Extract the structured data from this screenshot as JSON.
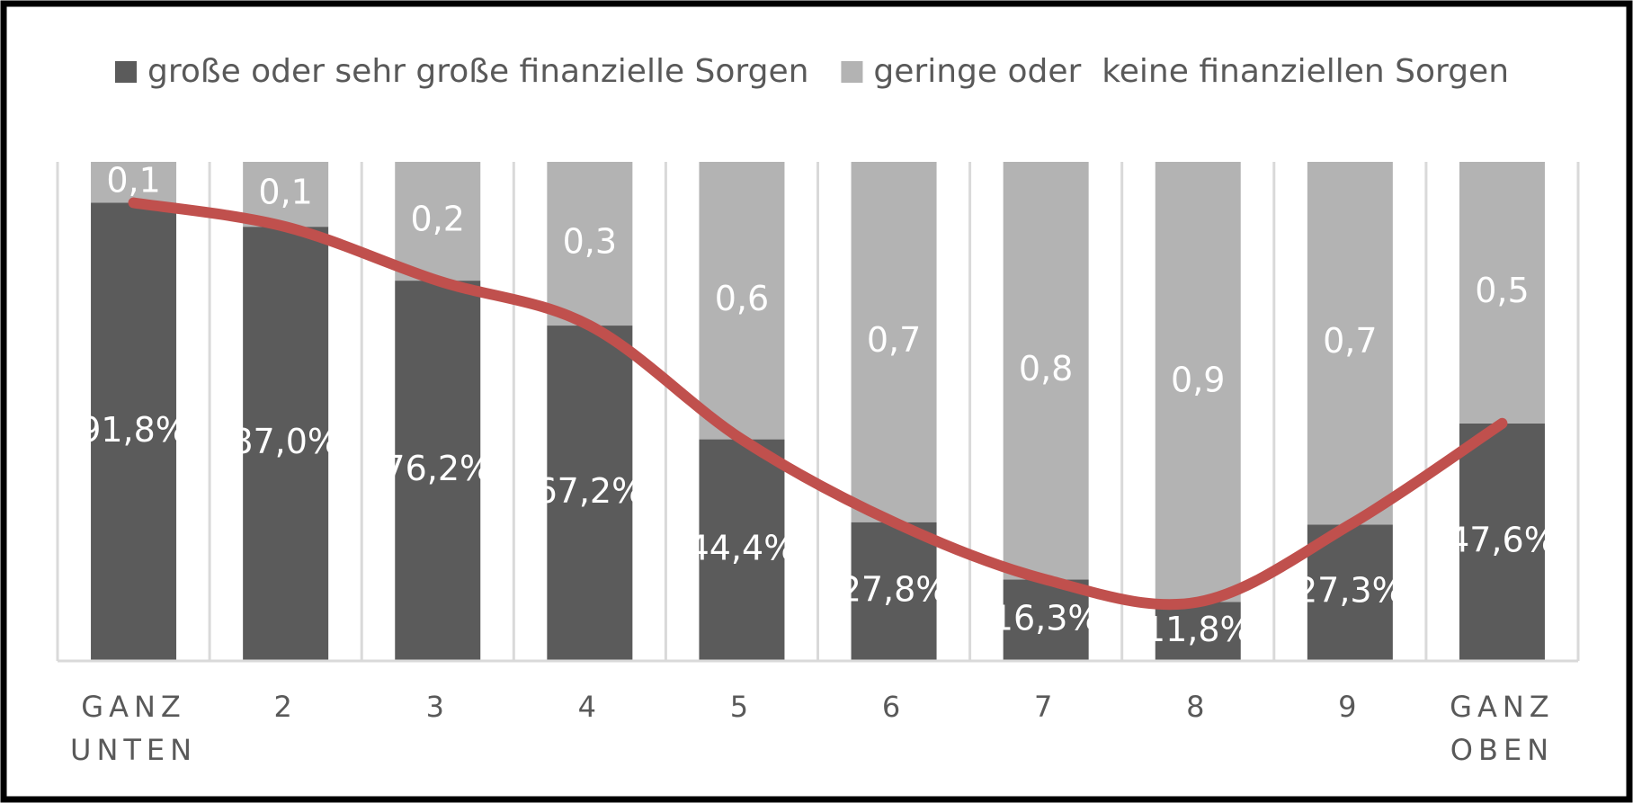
{
  "chart_data": {
    "type": "stacked_bar",
    "categories": [
      "GANZ UNTEN",
      "2",
      "3",
      "4",
      "5",
      "6",
      "7",
      "8",
      "9",
      "GANZ OBEN"
    ],
    "series": [
      {
        "name": "große oder sehr große finanzielle Sorgen",
        "color": "#5b5b5b",
        "values": [
          91.8,
          87.0,
          76.2,
          67.2,
          44.4,
          27.8,
          16.3,
          11.8,
          27.3,
          47.6
        ],
        "value_labels": [
          "91,8%",
          "87,0%",
          "76,2%",
          "67,2%",
          "44,4%",
          "27,8%",
          "16,3%",
          "11,8%",
          "27,3%",
          "47,6%"
        ]
      },
      {
        "name": "geringe oder  keine finanziellen Sorgen",
        "color": "#b3b3b3",
        "values": [
          8.2,
          13.0,
          23.8,
          32.8,
          55.6,
          72.2,
          83.7,
          88.2,
          72.7,
          52.4
        ],
        "value_labels": [
          "0,1",
          "0,1",
          "0,2",
          "0,3",
          "0,6",
          "0,7",
          "0,8",
          "0,9",
          "0,7",
          "0,5"
        ]
      }
    ],
    "trend_line_color": "#c0504d",
    "ylim": [
      0,
      100
    ],
    "legend": "top"
  }
}
